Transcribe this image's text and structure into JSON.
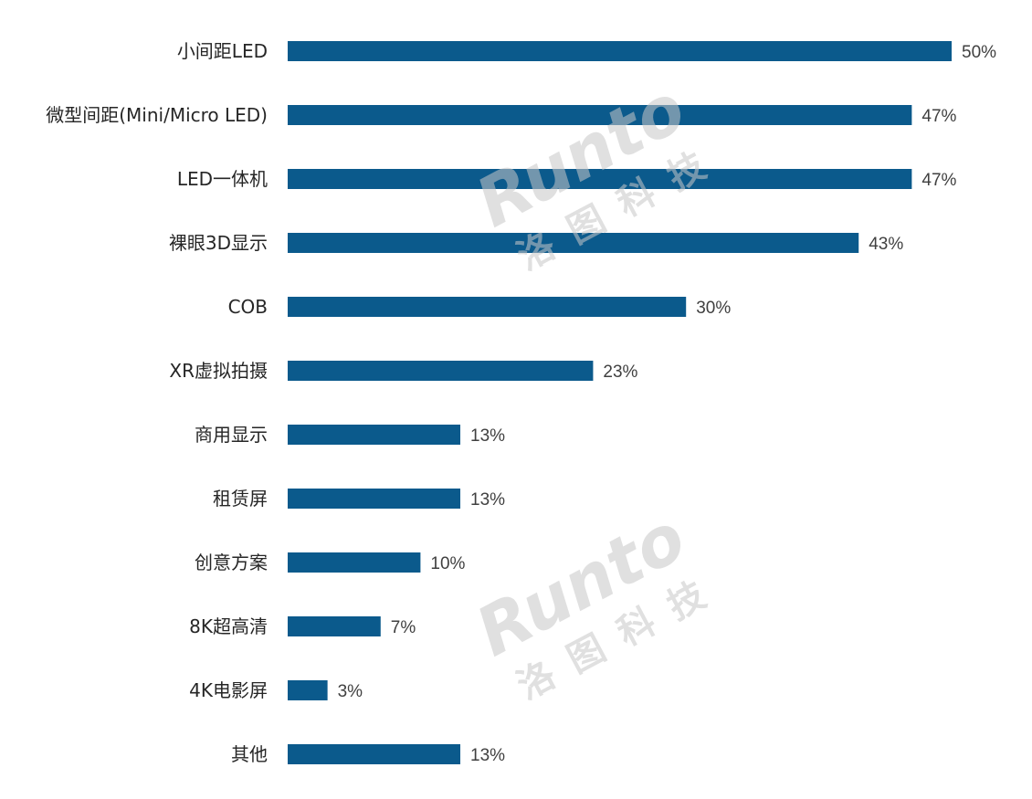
{
  "chart_data": {
    "type": "bar",
    "orientation": "horizontal",
    "categories": [
      "小间距LED",
      "微型间距(Mini/Micro LED)",
      "LED一体机",
      "裸眼3D显示",
      "COB",
      "XR虚拟拍摄",
      "商用显示",
      "租赁屏",
      "创意方案",
      "8K超高清",
      "4K电影屏",
      "其他"
    ],
    "values": [
      50,
      47,
      47,
      43,
      30,
      23,
      13,
      13,
      10,
      7,
      3,
      13
    ],
    "value_labels": [
      "50%",
      "47%",
      "47%",
      "43%",
      "30%",
      "23%",
      "13%",
      "13%",
      "10%",
      "7%",
      "3%",
      "13%"
    ],
    "unit": "%",
    "xlim": [
      0,
      50
    ],
    "bar_color": "#0b5a8c",
    "grid": false,
    "legend": "none"
  },
  "watermark": {
    "text": "Runto",
    "cn_text": "洛图科技",
    "count": 2
  }
}
